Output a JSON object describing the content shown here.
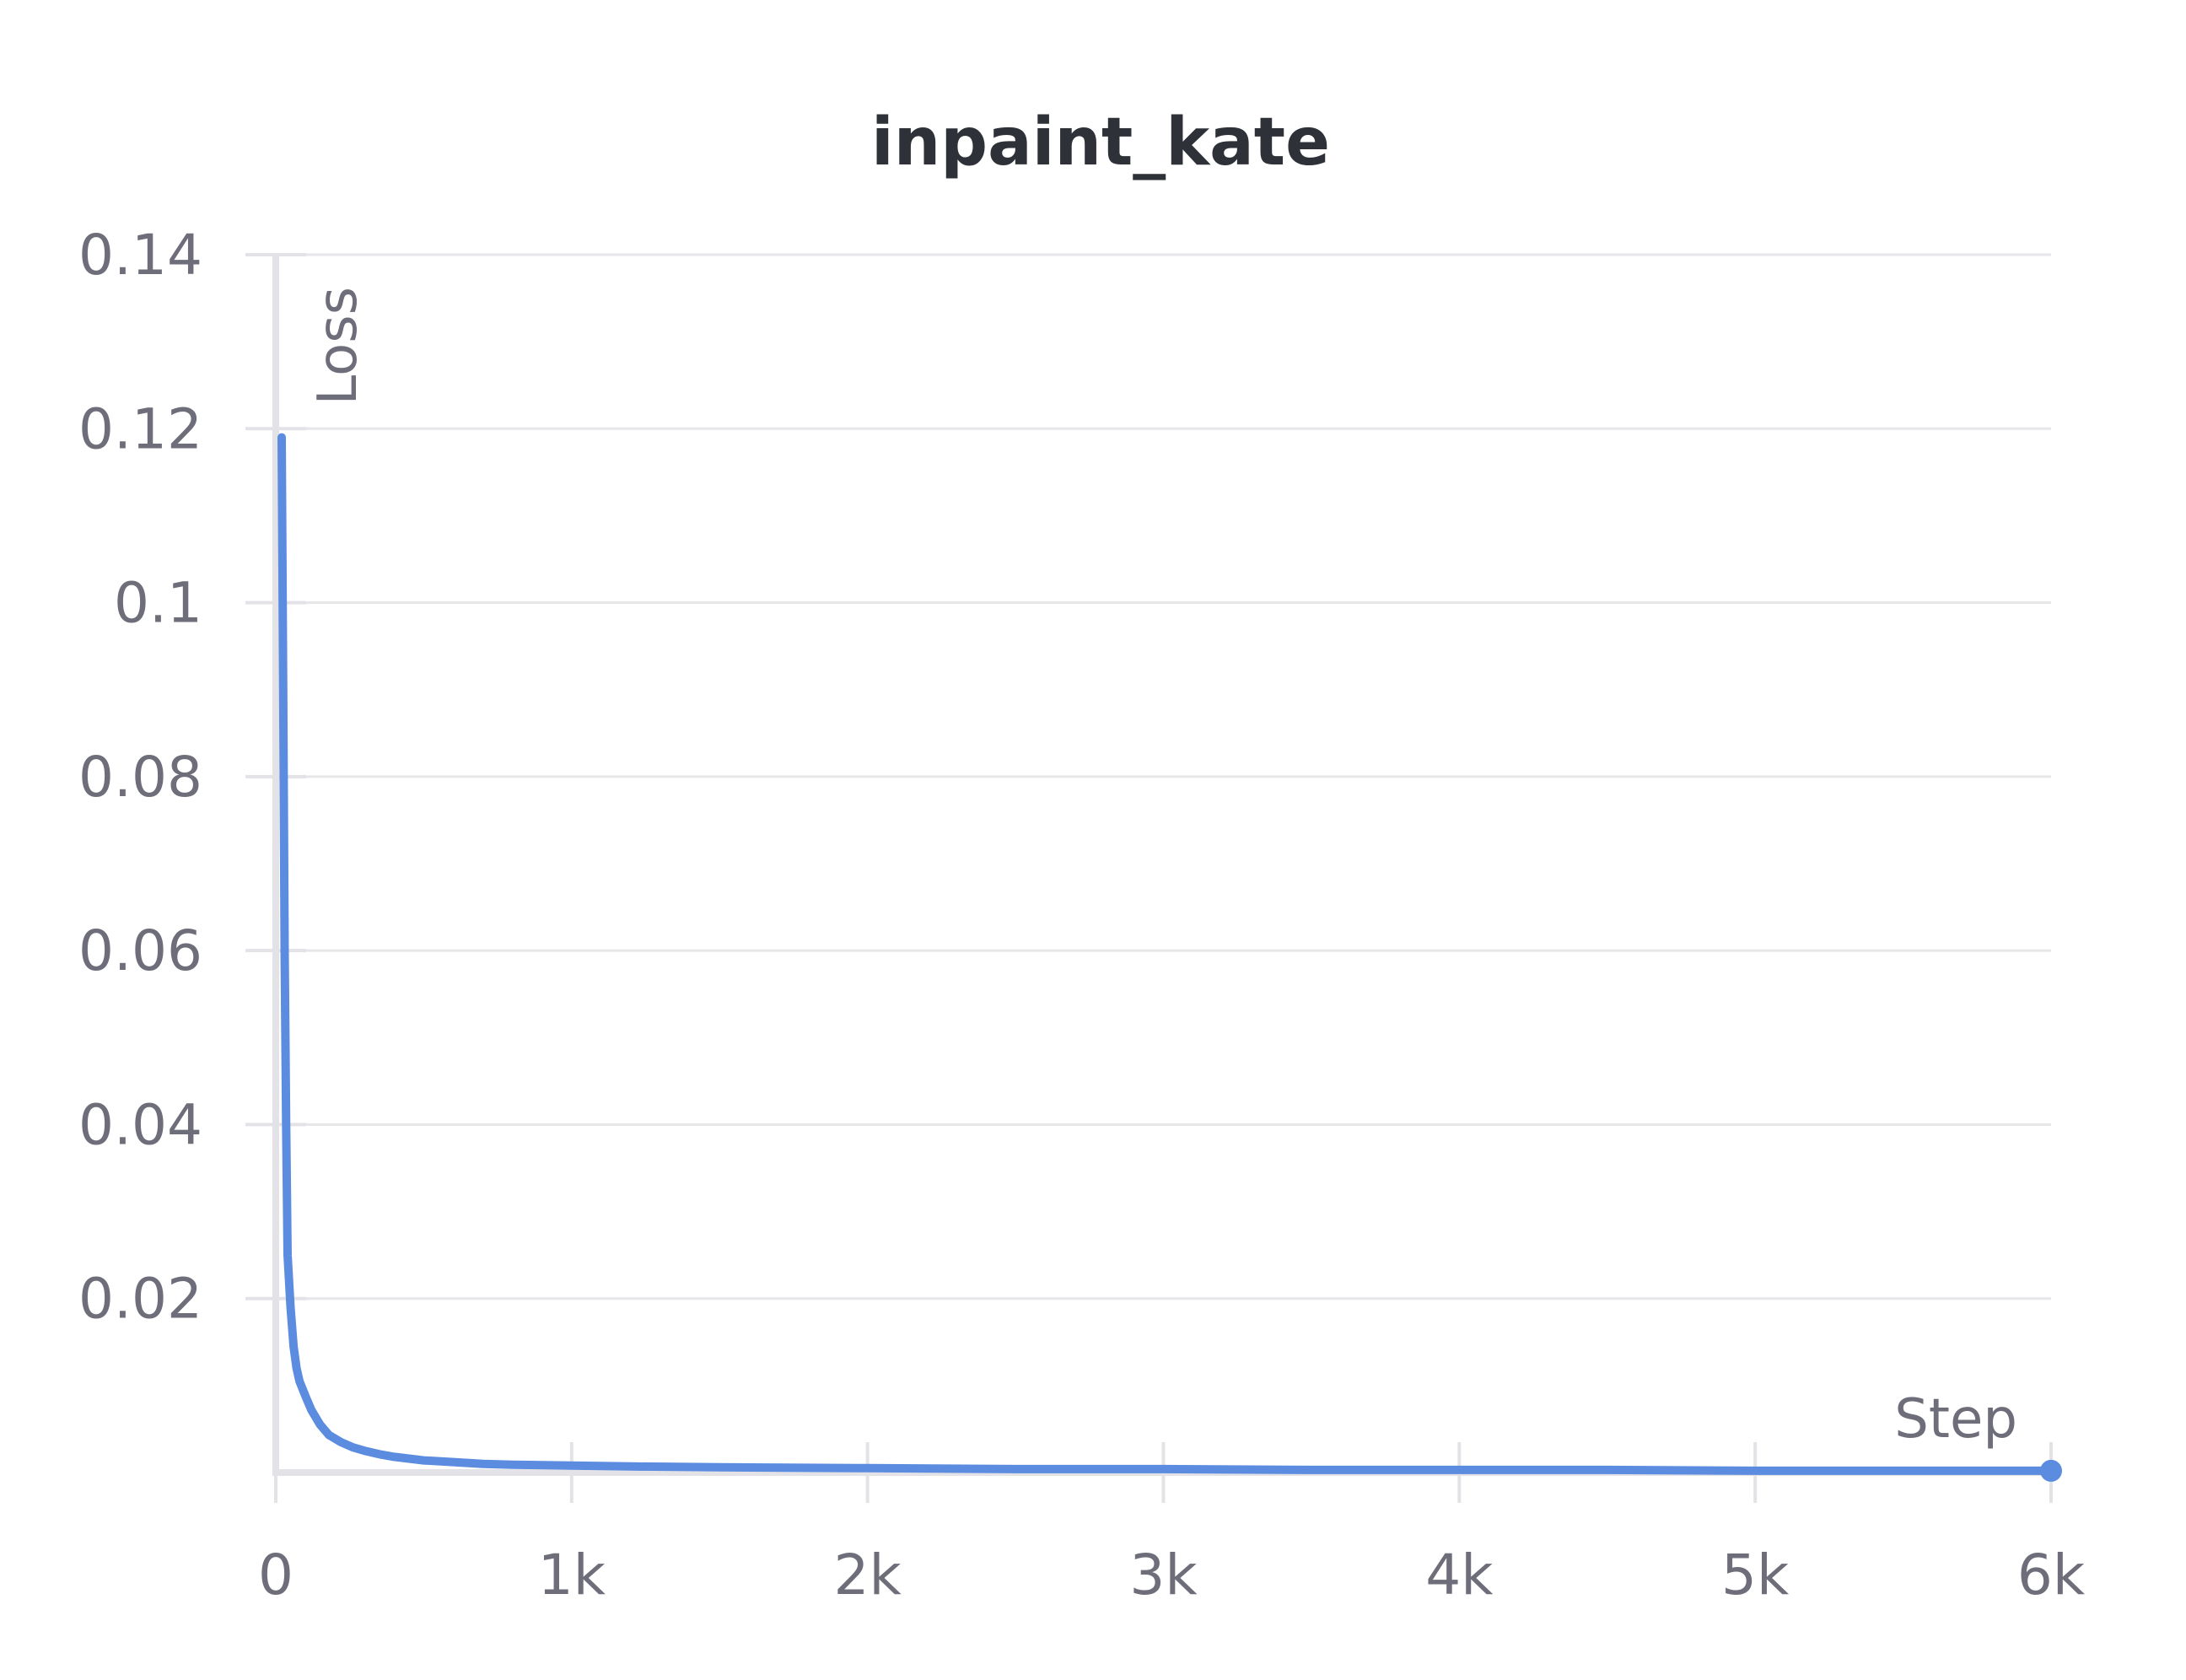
{
  "chart_data": {
    "type": "line",
    "title": "inpaint_kate",
    "xlabel": "Step",
    "ylabel": "Loss",
    "xlim": [
      0,
      6000
    ],
    "ylim": [
      0,
      0.14
    ],
    "grid": true,
    "legend": "none",
    "x_ticks": [
      {
        "value": 0,
        "label": "0"
      },
      {
        "value": 1000,
        "label": "1k"
      },
      {
        "value": 2000,
        "label": "2k"
      },
      {
        "value": 3000,
        "label": "3k"
      },
      {
        "value": 4000,
        "label": "4k"
      },
      {
        "value": 5000,
        "label": "5k"
      },
      {
        "value": 6000,
        "label": "6k"
      }
    ],
    "y_ticks": [
      {
        "value": 0.02,
        "label": "0.02"
      },
      {
        "value": 0.04,
        "label": "0.04"
      },
      {
        "value": 0.06,
        "label": "0.06"
      },
      {
        "value": 0.08,
        "label": "0.08"
      },
      {
        "value": 0.1,
        "label": "0.1"
      },
      {
        "value": 0.12,
        "label": "0.12"
      },
      {
        "value": 0.14,
        "label": "0.14"
      }
    ],
    "series": [
      {
        "color": "#5b8ce0",
        "x": [
          20,
          25,
          30,
          35,
          40,
          50,
          60,
          70,
          80,
          100,
          120,
          150,
          180,
          220,
          260,
          300,
          350,
          400,
          450,
          500,
          600,
          700,
          800,
          1000,
          1200,
          1500,
          2000,
          2500,
          3000,
          3500,
          4000,
          4500,
          5000,
          5500,
          6000
        ],
        "y": [
          0.119,
          0.09,
          0.06,
          0.04,
          0.025,
          0.019,
          0.0145,
          0.012,
          0.0105,
          0.0088,
          0.0072,
          0.0055,
          0.0043,
          0.0035,
          0.0029,
          0.0025,
          0.0021,
          0.0018,
          0.0016,
          0.0014,
          0.0012,
          0.001,
          0.0009,
          0.0008,
          0.0007,
          0.0006,
          0.0005,
          0.0004,
          0.0004,
          0.0003,
          0.0003,
          0.0003,
          0.0002,
          0.0002,
          0.0002
        ]
      }
    ]
  }
}
